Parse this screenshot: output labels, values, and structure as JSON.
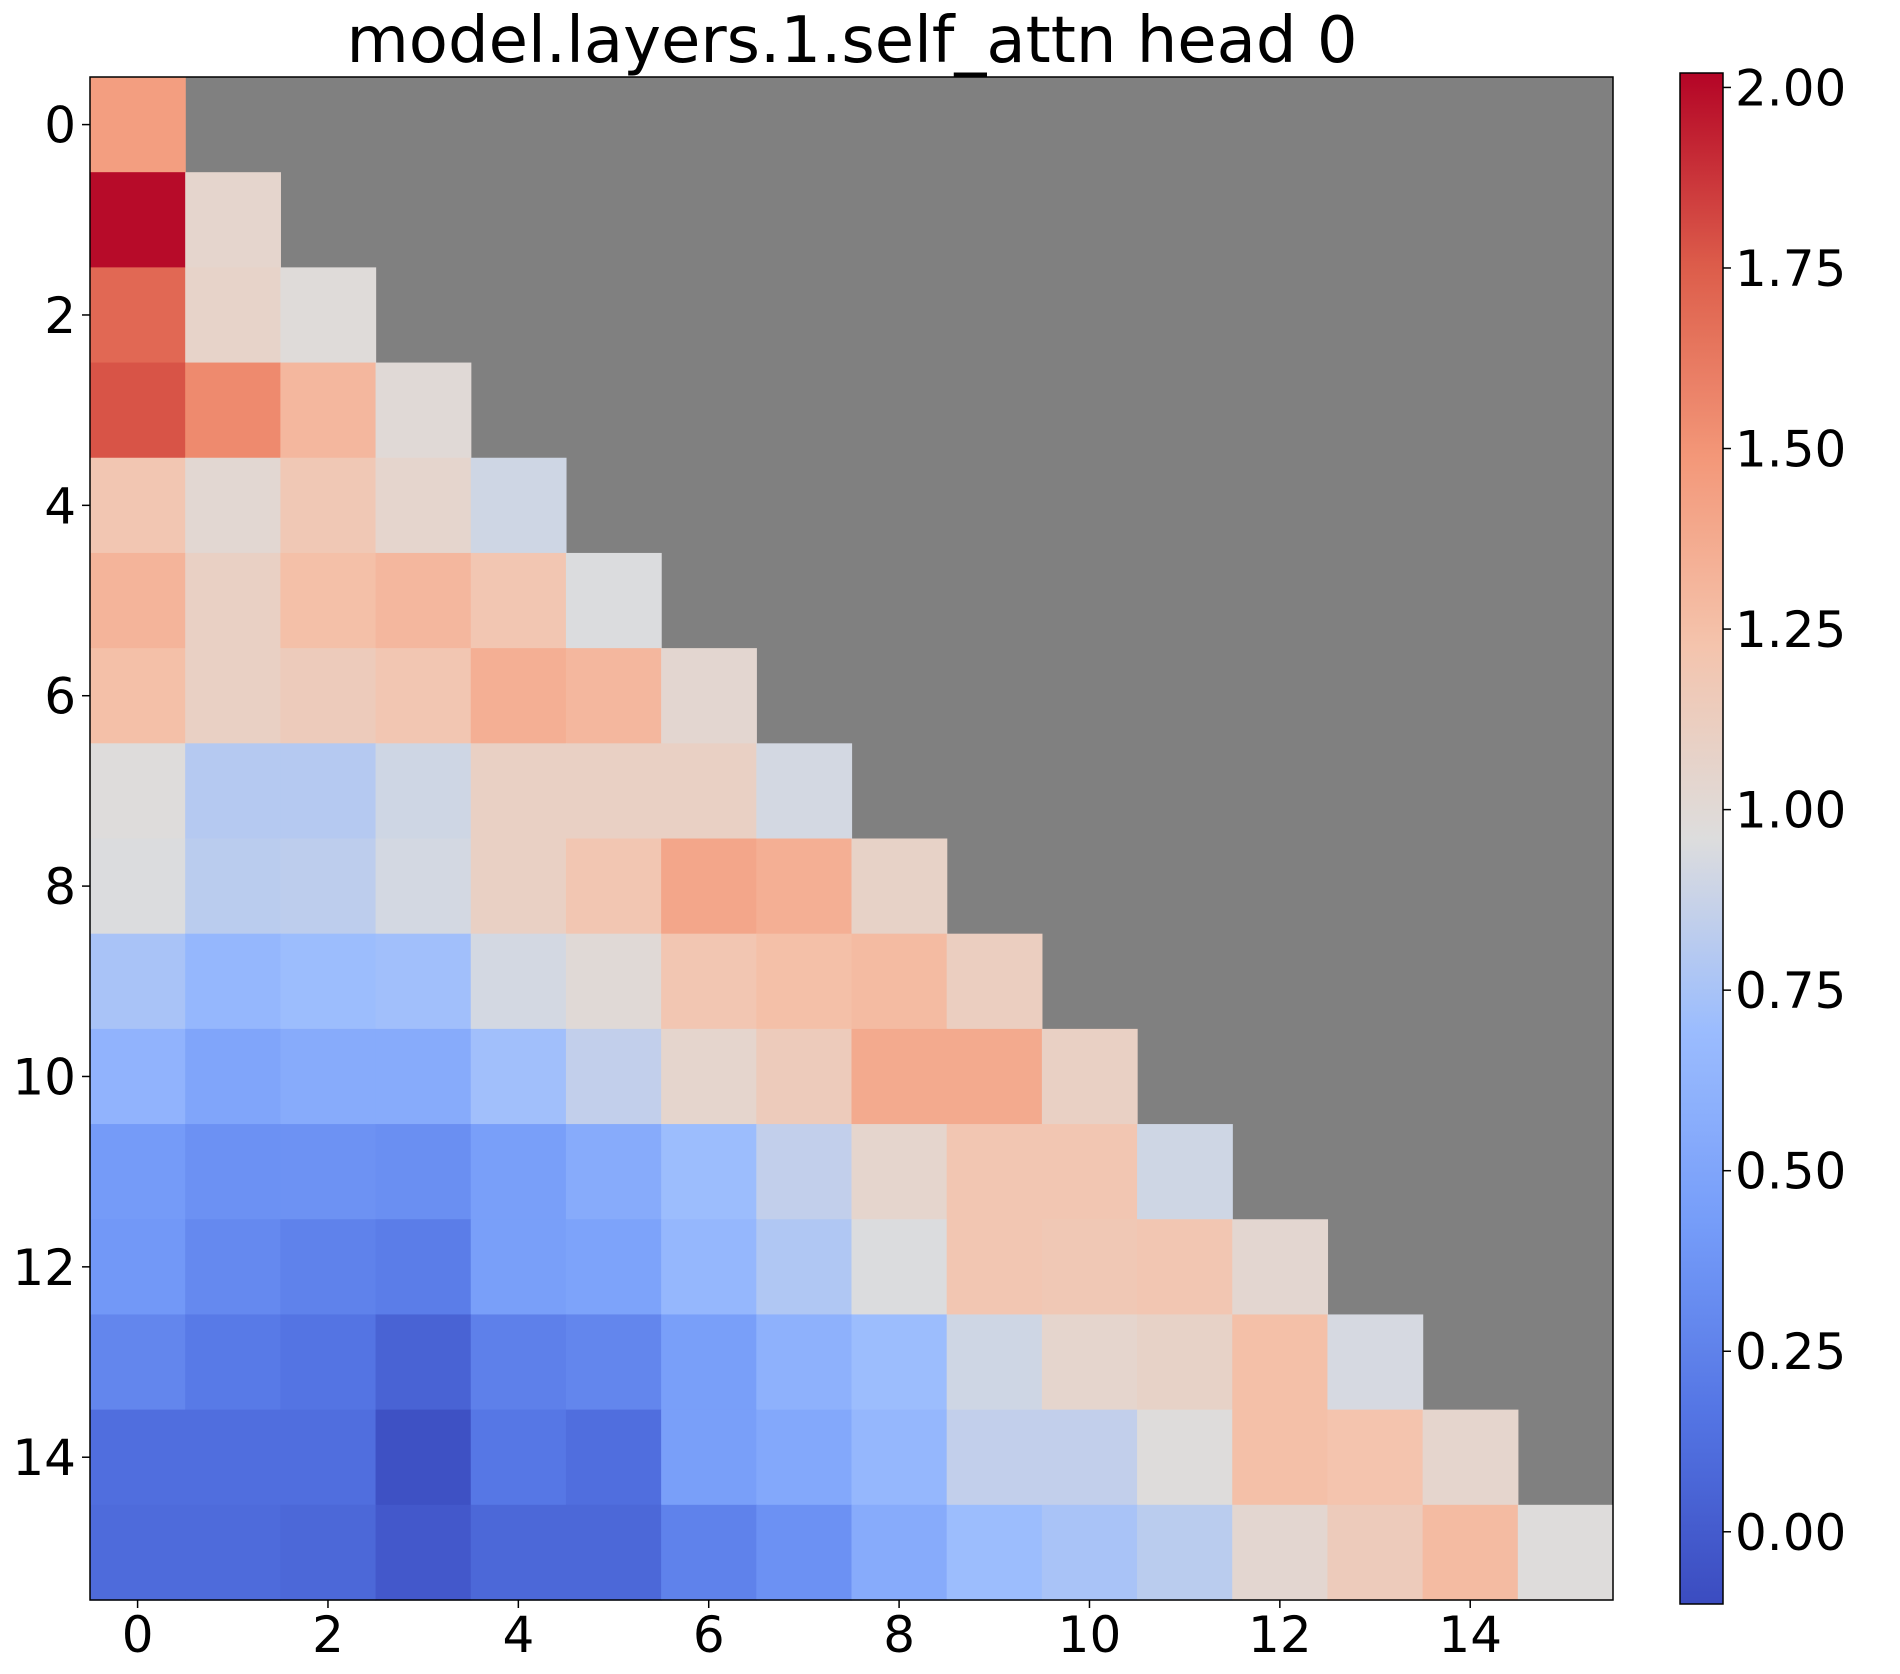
{
  "chart_data": {
    "type": "heatmap",
    "title": "model.layers.1.self_attn head 0",
    "xlabel": "",
    "ylabel": "",
    "x_ticks": [
      0,
      2,
      4,
      6,
      8,
      10,
      12,
      14
    ],
    "y_ticks": [
      0,
      2,
      4,
      6,
      8,
      10,
      12,
      14
    ],
    "colormap": "coolwarm",
    "masked_color": "#808080",
    "masked_region": "upper triangle (column > row)",
    "colorbar": {
      "vmin": -0.1,
      "vmax": 2.02,
      "ticks": [
        0.0,
        0.25,
        0.5,
        0.75,
        1.0,
        1.25,
        1.5,
        1.75,
        2.0
      ],
      "tick_labels": [
        "0.00",
        "0.25",
        "0.50",
        "0.75",
        "1.00",
        "1.25",
        "1.50",
        "1.75",
        "2.00"
      ]
    },
    "rows": [
      [
        1.45
      ],
      [
        2.0,
        1.05
      ],
      [
        1.7,
        1.07,
        0.98
      ],
      [
        1.78,
        1.55,
        1.3,
        1.0
      ],
      [
        1.2,
        1.02,
        1.18,
        1.05,
        0.9
      ],
      [
        1.32,
        1.1,
        1.25,
        1.3,
        1.2,
        0.95
      ],
      [
        1.25,
        1.1,
        1.15,
        1.2,
        1.35,
        1.3,
        1.03
      ],
      [
        0.97,
        0.8,
        0.8,
        0.9,
        1.1,
        1.1,
        1.1,
        0.92
      ],
      [
        0.95,
        0.82,
        0.83,
        0.92,
        1.1,
        1.2,
        1.4,
        1.35,
        1.08
      ],
      [
        0.75,
        0.65,
        0.7,
        0.72,
        0.92,
        1.0,
        1.2,
        1.25,
        1.28,
        1.12
      ],
      [
        0.62,
        0.5,
        0.55,
        0.55,
        0.72,
        0.85,
        1.05,
        1.15,
        1.38,
        1.38,
        1.1
      ],
      [
        0.42,
        0.35,
        0.36,
        0.34,
        0.45,
        0.55,
        0.7,
        0.85,
        1.05,
        1.2,
        1.2,
        0.9
      ],
      [
        0.4,
        0.3,
        0.25,
        0.22,
        0.45,
        0.48,
        0.65,
        0.78,
        0.95,
        1.2,
        1.18,
        1.2,
        1.03
      ],
      [
        0.28,
        0.2,
        0.16,
        0.05,
        0.24,
        0.28,
        0.45,
        0.6,
        0.7,
        0.9,
        1.05,
        1.08,
        1.25,
        0.93
      ],
      [
        0.12,
        0.12,
        0.12,
        -0.07,
        0.18,
        0.12,
        0.45,
        0.52,
        0.65,
        0.85,
        0.85,
        0.97,
        1.25,
        1.22,
        1.05
      ],
      [
        0.1,
        0.1,
        0.08,
        -0.02,
        0.08,
        0.08,
        0.25,
        0.35,
        0.55,
        0.7,
        0.75,
        0.82,
        1.03,
        1.15,
        1.28,
        0.97
      ]
    ]
  }
}
